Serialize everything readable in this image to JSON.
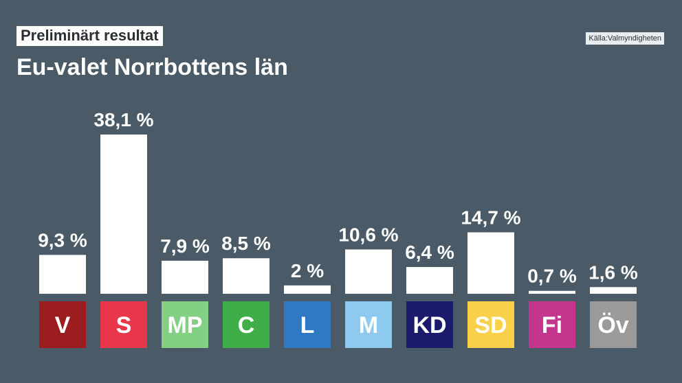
{
  "header": {
    "badge": "Preliminärt resultat",
    "title": "Eu-valet Norrbottens län",
    "source": "Källa:Valmyndigheten"
  },
  "chart_data": {
    "type": "bar",
    "title": "Eu-valet Norrbottens län",
    "subtitle": "Preliminärt resultat",
    "categories": [
      "V",
      "S",
      "MP",
      "C",
      "L",
      "M",
      "KD",
      "SD",
      "Fi",
      "Öv"
    ],
    "values": [
      9.3,
      38.1,
      7.9,
      8.5,
      2,
      10.6,
      6.4,
      14.7,
      0.7,
      1.6
    ],
    "value_labels": [
      "9,3 %",
      "38,1 %",
      "7,9 %",
      "8,5 %",
      "2 %",
      "10,6 %",
      "6,4 %",
      "14,7 %",
      "0,7 %",
      "1,6 %"
    ],
    "colors": [
      "#9b1d20",
      "#e8374a",
      "#83cf83",
      "#3fae49",
      "#2f79c2",
      "#8ec9ef",
      "#1b1a6b",
      "#f9d04a",
      "#c4358e",
      "#9a9a9a"
    ],
    "label_text_colors": [
      "#ffffff",
      "#ffffff",
      "#ffffff",
      "#ffffff",
      "#ffffff",
      "#ffffff",
      "#ffffff",
      "#ffffff",
      "#ffffff",
      "#ffffff"
    ],
    "xlabel": "",
    "ylabel": "",
    "ylim": [
      0,
      38.1
    ],
    "grid": false
  }
}
